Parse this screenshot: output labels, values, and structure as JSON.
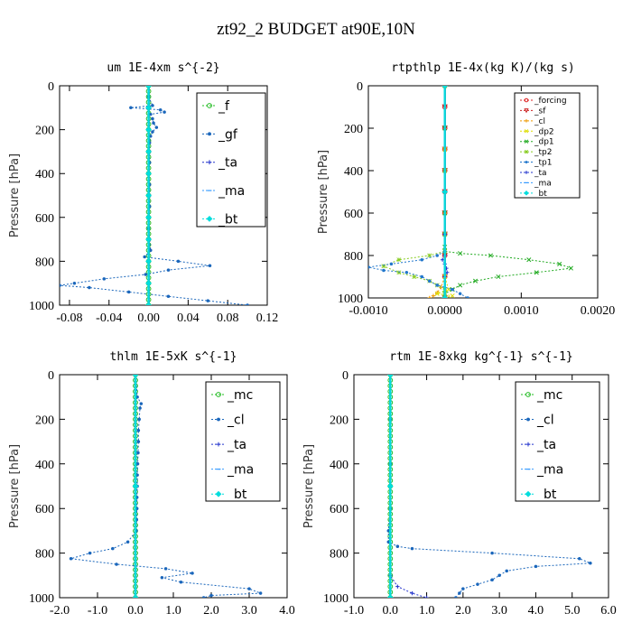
{
  "title": "zt92_2  BUDGET at90E,10N",
  "chart_data": [
    {
      "type": "line",
      "title": "um  1E-4xm s^{-2}",
      "ylabel": "Pressure [hPa]",
      "xlim": [
        -0.09,
        0.12
      ],
      "ylim": [
        1000,
        0
      ],
      "xticks": [
        -0.08,
        -0.04,
        0.0,
        0.04,
        0.08,
        0.12
      ],
      "xtick_labels": [
        "-0.08",
        "-0.04",
        "0.00",
        "0.04",
        "0.08",
        "0.12"
      ],
      "yticks": [
        0,
        200,
        400,
        600,
        800,
        1000
      ],
      "ytick_labels": [
        "0",
        "200",
        "400",
        "600",
        "800",
        "1000"
      ],
      "legend_style": "large",
      "legend": [
        "_f",
        "_gf",
        "_ta",
        "_ma",
        "_bt"
      ],
      "series": [
        {
          "name": "_f",
          "color": "#22bb22",
          "marker": "circle",
          "y": [
            0,
            25,
            50,
            75,
            100,
            125,
            150,
            175,
            200,
            225,
            250,
            275,
            300,
            325,
            350,
            375,
            400,
            425,
            450,
            475,
            500,
            525,
            550,
            575,
            600,
            625,
            650,
            675,
            700,
            725,
            750,
            775,
            800,
            825,
            850,
            875,
            900,
            925,
            950,
            975,
            1000
          ],
          "x": [
            0,
            0,
            0,
            0,
            0,
            0,
            0,
            0,
            0,
            0,
            0,
            0,
            0,
            0,
            0,
            0,
            0,
            0,
            0,
            0,
            0,
            0,
            0,
            0,
            0,
            0,
            0,
            0,
            0,
            0,
            0,
            0,
            0,
            0,
            0,
            0,
            0,
            0,
            0,
            0,
            0
          ]
        },
        {
          "name": "_gf",
          "color": "#1a66bb",
          "marker": "dot",
          "y": [
            0,
            50,
            90,
            100,
            110,
            120,
            130,
            150,
            170,
            190,
            210,
            230,
            260,
            300,
            350,
            400,
            450,
            500,
            550,
            600,
            650,
            700,
            750,
            780,
            800,
            820,
            840,
            860,
            880,
            900,
            910,
            920,
            940,
            960,
            980,
            1000
          ],
          "x": [
            0,
            0,
            0.004,
            -0.018,
            0.012,
            0.016,
            0.002,
            0.004,
            0.005,
            0.008,
            0.004,
            0.002,
            0.001,
            0.001,
            0.001,
            0,
            0.001,
            0.001,
            0.001,
            0,
            0,
            0.001,
            0.002,
            -0.004,
            0.03,
            0.062,
            0.02,
            -0.003,
            -0.045,
            -0.075,
            -0.09,
            -0.06,
            -0.02,
            0.02,
            0.06,
            0.1
          ]
        },
        {
          "name": "_ta",
          "color": "#2233cc",
          "marker": "plus",
          "y": [
            0,
            100,
            200,
            300,
            400,
            500,
            600,
            700,
            800,
            900,
            1000
          ],
          "x": [
            0,
            0,
            0,
            0,
            0,
            0,
            0,
            0,
            0,
            0,
            0
          ]
        },
        {
          "name": "_ma",
          "color": "#3399ff",
          "marker": "dash",
          "y": [
            0,
            100,
            200,
            300,
            400,
            500,
            600,
            700,
            800,
            900,
            1000
          ],
          "x": [
            0,
            0,
            0,
            0,
            0,
            0,
            0,
            0,
            0,
            0,
            0
          ]
        },
        {
          "name": "_bt",
          "color": "#00dddd",
          "marker": "diamond",
          "y": [
            0,
            100,
            200,
            300,
            400,
            500,
            600,
            700,
            800,
            900,
            1000
          ],
          "x": [
            0,
            0,
            0,
            0,
            0,
            0,
            0,
            0,
            0,
            0,
            0
          ]
        }
      ]
    },
    {
      "type": "line",
      "title": "rtpthlp  1E-4x(kg K)/(kg s)",
      "ylabel": "Pressure [hPa]",
      "xlim": [
        -0.001,
        0.002
      ],
      "ylim": [
        1000,
        0
      ],
      "xticks": [
        -0.001,
        0.0,
        0.001,
        0.002
      ],
      "xtick_labels": [
        "-0.0010",
        "0.0000",
        "0.0010",
        "0.0020"
      ],
      "yticks": [
        0,
        200,
        400,
        600,
        800,
        1000
      ],
      "ytick_labels": [
        "0",
        "200",
        "400",
        "600",
        "800",
        "1000"
      ],
      "legend_style": "small",
      "legend": [
        "_forcing",
        "_sf",
        "_cl",
        "_dp2",
        "_dp1",
        "_tp2",
        "_tp1",
        "_ta",
        "_ma",
        "_bt"
      ],
      "series": [
        {
          "name": "_forcing",
          "color": "#dd2222",
          "marker": "circle",
          "y": [
            0,
            100,
            200,
            300,
            400,
            500,
            600,
            700,
            800,
            900,
            1000
          ],
          "x": [
            0,
            0,
            0,
            0,
            0,
            0,
            0,
            0,
            0,
            0,
            0
          ]
        },
        {
          "name": "_sf",
          "color": "#cc2222",
          "marker": "triangle",
          "y": [
            0,
            100,
            200,
            300,
            400,
            500,
            600,
            700,
            800,
            900,
            1000
          ],
          "x": [
            0,
            0,
            0,
            0,
            0,
            0,
            0,
            0,
            0,
            0,
            0
          ]
        },
        {
          "name": "_cl",
          "color": "#ee9900",
          "marker": "plus",
          "y": [
            0,
            300,
            600,
            900,
            950,
            975,
            990,
            1000
          ],
          "x": [
            0,
            0,
            0,
            0,
            -5e-05,
            -0.0001,
            -0.00015,
            -0.0002
          ]
        },
        {
          "name": "_dp2",
          "color": "#dddd00",
          "marker": "cross",
          "y": [
            0,
            300,
            600,
            900,
            960,
            980,
            990,
            1000
          ],
          "x": [
            0,
            0,
            0,
            0,
            5e-05,
            -0.0001,
            0.0001,
            0
          ]
        },
        {
          "name": "_dp1",
          "color": "#22aa22",
          "marker": "x",
          "y": [
            0,
            200,
            400,
            600,
            700,
            760,
            780,
            790,
            800,
            820,
            840,
            860,
            880,
            900,
            920,
            940,
            960,
            980,
            1000
          ],
          "x": [
            0,
            0,
            0,
            0,
            0,
            0,
            0,
            0.0002,
            0.0006,
            0.0011,
            0.0015,
            0.00165,
            0.0012,
            0.0007,
            0.0004,
            0.0002,
            0.0001,
            0,
            0
          ]
        },
        {
          "name": "_tp2",
          "color": "#88cc22",
          "marker": "star",
          "y": [
            0,
            400,
            700,
            780,
            800,
            820,
            850,
            880,
            900,
            920,
            940,
            960,
            980,
            1000
          ],
          "x": [
            0,
            0,
            0,
            0,
            -0.0002,
            -0.0006,
            -0.0008,
            -0.0006,
            -0.0004,
            -0.0002,
            -0.0001,
            0,
            0,
            0
          ]
        },
        {
          "name": "_tp1",
          "color": "#2277cc",
          "marker": "dot",
          "y": [
            0,
            700,
            780,
            800,
            820,
            840,
            855,
            870,
            880,
            900,
            920,
            940,
            960,
            980,
            1000
          ],
          "x": [
            0,
            0,
            0,
            -0.0001,
            -0.0003,
            -0.0007,
            -0.001,
            -0.0008,
            -0.0005,
            -0.0003,
            -0.0002,
            -0.0001,
            0.0001,
            0.0002,
            0.0003
          ]
        },
        {
          "name": "_ta",
          "color": "#2233cc",
          "marker": "plus",
          "y": [
            0,
            700,
            800,
            820,
            840,
            860,
            880,
            900,
            1000
          ],
          "x": [
            0,
            0,
            0,
            -3e-05,
            0,
            2e-05,
            3e-05,
            0,
            0
          ]
        },
        {
          "name": "_ma",
          "color": "#3399ff",
          "marker": "dash",
          "y": [
            0,
            500,
            1000
          ],
          "x": [
            0,
            0,
            0
          ]
        },
        {
          "name": "_bt",
          "color": "#00dddd",
          "marker": "diamond",
          "y": [
            0,
            500,
            1000
          ],
          "x": [
            0,
            0,
            0
          ]
        }
      ]
    },
    {
      "type": "line",
      "title": "thlm  1E-5xK s^{-1}",
      "ylabel": "Pressure [hPa]",
      "xlim": [
        -2.0,
        4.0
      ],
      "ylim": [
        1000,
        0
      ],
      "xticks": [
        -2,
        -1,
        0,
        1,
        2,
        3,
        4
      ],
      "xtick_labels": [
        "-2.0",
        "-1.0",
        "0.0",
        "1.0",
        "2.0",
        "3.0",
        "4.0"
      ],
      "yticks": [
        0,
        200,
        400,
        600,
        800,
        1000
      ],
      "ytick_labels": [
        "0",
        "200",
        "400",
        "600",
        "800",
        "1000"
      ],
      "legend_style": "large",
      "legend": [
        "_mc",
        "_cl",
        "_ta",
        "_ma",
        "_bt"
      ],
      "series": [
        {
          "name": "_mc",
          "color": "#22bb22",
          "marker": "circle",
          "y": [
            0,
            25,
            50,
            75,
            100,
            125,
            150,
            175,
            200,
            225,
            250,
            275,
            300,
            325,
            350,
            375,
            400,
            425,
            450,
            475,
            500,
            525,
            550,
            575,
            600,
            625,
            650,
            675,
            700,
            725,
            750,
            775,
            800,
            825,
            850,
            875,
            900,
            925,
            950,
            975,
            1000
          ],
          "x": [
            0,
            0,
            0,
            0,
            0,
            0,
            0,
            0,
            0,
            0,
            0,
            0,
            0,
            0,
            0,
            0,
            0,
            0,
            0,
            0,
            0,
            0,
            0,
            0,
            0,
            0,
            0,
            0,
            0,
            0,
            0,
            0,
            0,
            0,
            0,
            0,
            0,
            0,
            0,
            0,
            0
          ]
        },
        {
          "name": "_cl",
          "color": "#1a66bb",
          "marker": "dot",
          "y": [
            0,
            100,
            130,
            150,
            200,
            250,
            300,
            350,
            400,
            450,
            500,
            550,
            600,
            650,
            700,
            750,
            780,
            800,
            825,
            850,
            870,
            890,
            910,
            930,
            960,
            980,
            990,
            1000
          ],
          "x": [
            0,
            0.05,
            0.15,
            0.12,
            0.1,
            0.08,
            0.08,
            0.07,
            0.06,
            0.05,
            0.05,
            0.04,
            0.04,
            0.03,
            0.02,
            -0.2,
            -0.6,
            -1.2,
            -1.7,
            -0.5,
            0.8,
            1.5,
            0.7,
            1.2,
            3.0,
            3.3,
            2.0,
            1.8
          ]
        },
        {
          "name": "_ta",
          "color": "#2233cc",
          "marker": "plus",
          "y": [
            0,
            500,
            1000
          ],
          "x": [
            0,
            0,
            0
          ]
        },
        {
          "name": "_ma",
          "color": "#3399ff",
          "marker": "dash",
          "y": [
            0,
            500,
            1000
          ],
          "x": [
            0,
            0,
            0
          ]
        },
        {
          "name": "_bt",
          "color": "#00dddd",
          "marker": "diamond",
          "y": [
            0,
            500,
            1000
          ],
          "x": [
            0,
            0,
            0
          ]
        }
      ]
    },
    {
      "type": "line",
      "title": "rtm  1E-8xkg kg^{-1} s^{-1}",
      "ylabel": "Pressure [hPa]",
      "xlim": [
        -1.0,
        6.0
      ],
      "ylim": [
        1000,
        0
      ],
      "xticks": [
        -1,
        0,
        1,
        2,
        3,
        4,
        5,
        6
      ],
      "xtick_labels": [
        "-1.0",
        "0.0",
        "1.0",
        "2.0",
        "3.0",
        "4.0",
        "5.0",
        "6.0"
      ],
      "yticks": [
        0,
        200,
        400,
        600,
        800,
        1000
      ],
      "ytick_labels": [
        "0",
        "200",
        "400",
        "600",
        "800",
        "1000"
      ],
      "legend_style": "large",
      "legend": [
        "_mc",
        "_cl",
        "_ta",
        "_ma",
        "_bt"
      ],
      "series": [
        {
          "name": "_mc",
          "color": "#22bb22",
          "marker": "circle",
          "y": [
            0,
            25,
            50,
            75,
            100,
            125,
            150,
            175,
            200,
            225,
            250,
            275,
            300,
            325,
            350,
            375,
            400,
            425,
            450,
            475,
            500,
            525,
            550,
            575,
            600,
            625,
            650,
            675,
            700,
            725,
            750,
            775,
            800,
            825,
            850,
            875,
            900,
            925,
            950,
            975,
            1000
          ],
          "x": [
            0,
            0,
            0,
            0,
            0,
            0,
            0,
            0,
            0,
            0,
            0,
            0,
            0,
            0,
            0,
            0,
            0,
            0,
            0,
            0,
            0,
            0,
            0,
            0,
            0,
            0,
            0,
            0,
            0,
            0,
            0,
            0,
            0,
            0,
            0,
            0,
            0,
            0,
            0,
            0,
            0
          ]
        },
        {
          "name": "_cl",
          "color": "#1a66bb",
          "marker": "dot",
          "y": [
            0,
            200,
            400,
            600,
            700,
            750,
            770,
            780,
            800,
            825,
            845,
            860,
            880,
            900,
            920,
            940,
            960,
            980,
            1000
          ],
          "x": [
            0,
            0,
            0,
            0,
            -0.05,
            -0.05,
            0.2,
            0.6,
            2.8,
            5.2,
            5.5,
            4.0,
            3.2,
            3.0,
            2.8,
            2.4,
            2.0,
            1.9,
            1.8
          ]
        },
        {
          "name": "_ta",
          "color": "#2233cc",
          "marker": "plus",
          "y": [
            0,
            500,
            900,
            950,
            980,
            1000
          ],
          "x": [
            0,
            0,
            0,
            0.2,
            0.6,
            1.0
          ]
        },
        {
          "name": "_ma",
          "color": "#3399ff",
          "marker": "dash",
          "y": [
            0,
            500,
            1000
          ],
          "x": [
            0,
            0,
            0
          ]
        },
        {
          "name": "_bt",
          "color": "#00dddd",
          "marker": "diamond",
          "y": [
            0,
            500,
            1000
          ],
          "x": [
            0,
            0,
            0
          ]
        }
      ]
    }
  ]
}
